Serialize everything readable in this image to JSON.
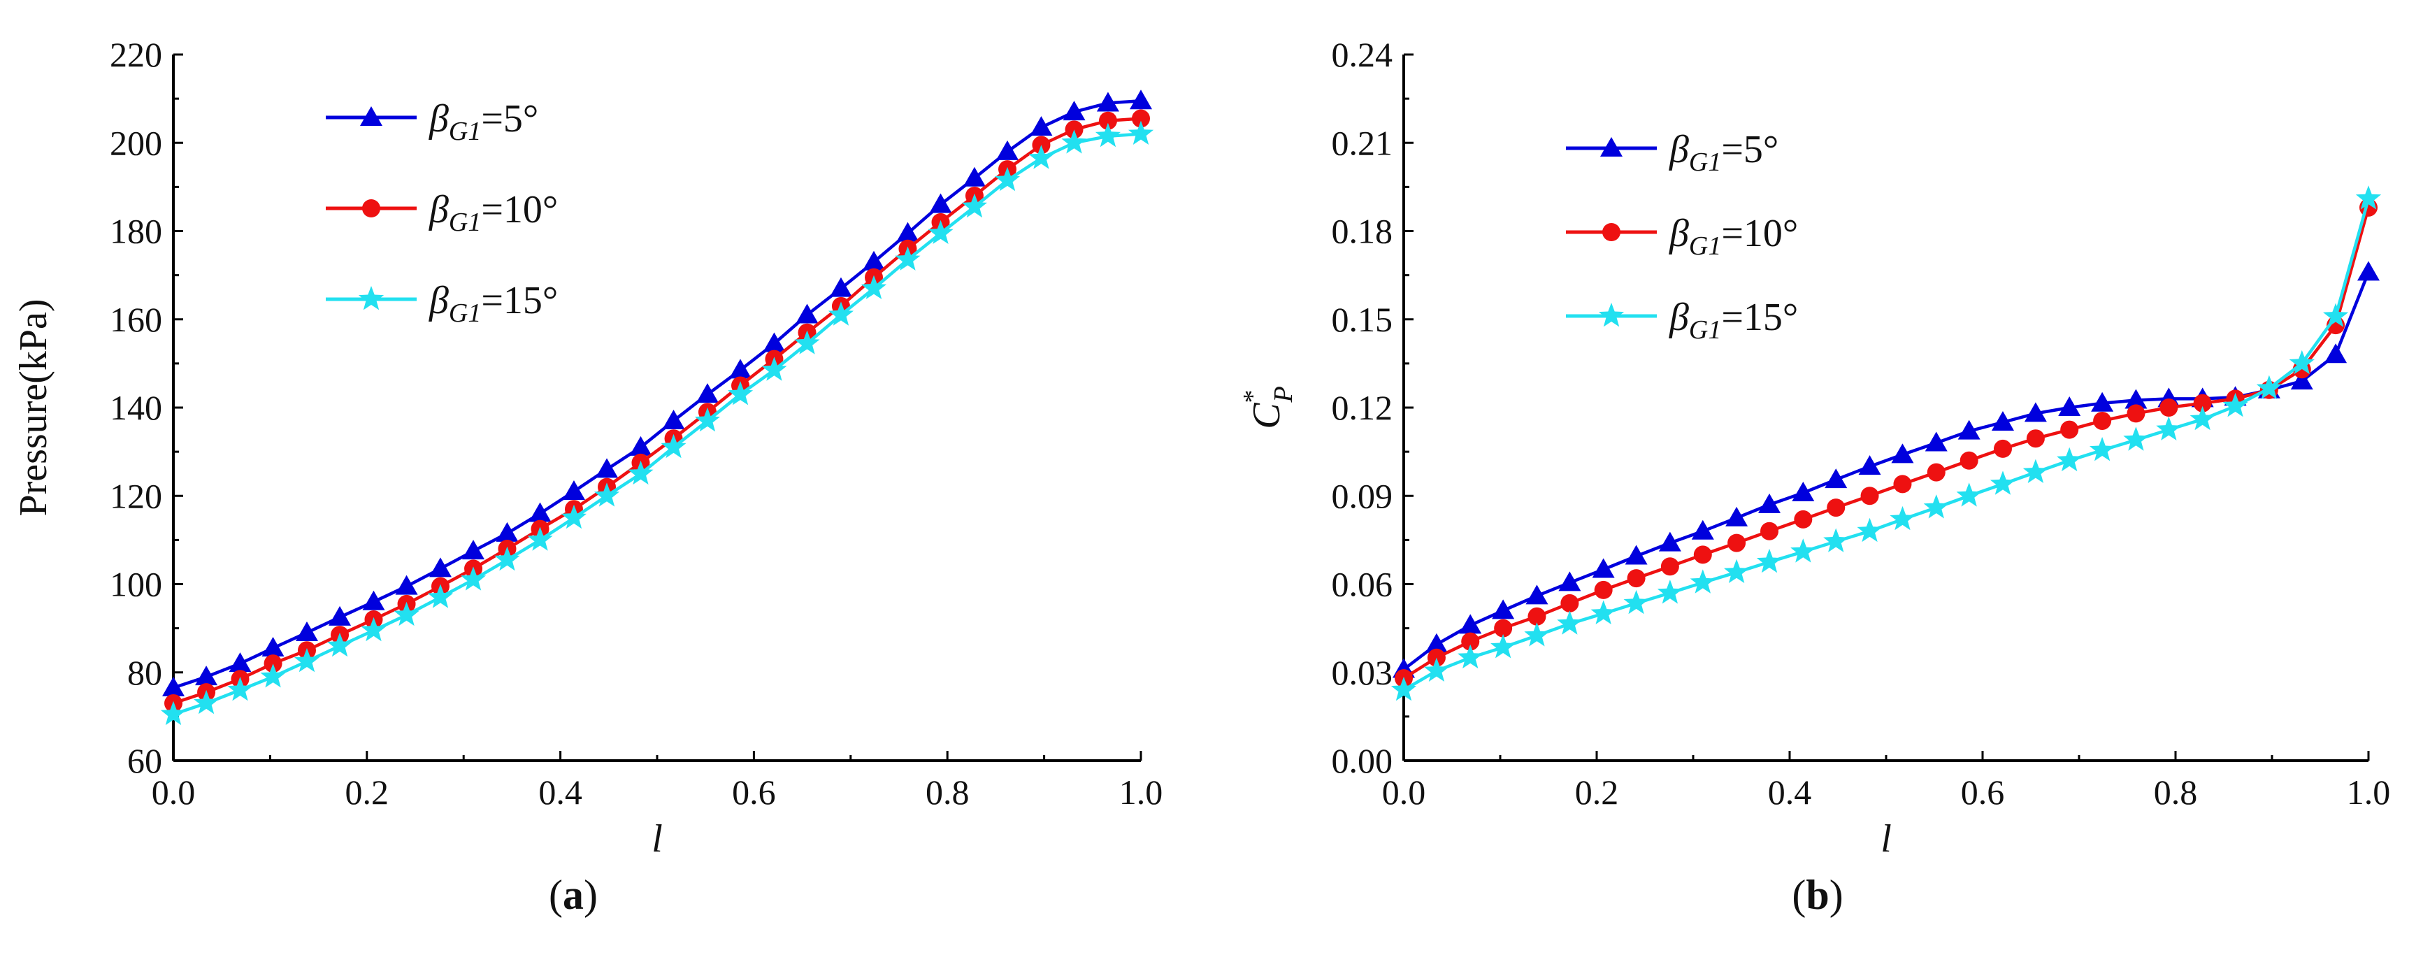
{
  "chart_data": [
    {
      "id": "a",
      "type": "line",
      "panel_label": [
        "(",
        "a",
        ")"
      ],
      "xlabel": "l",
      "ylabel": "Pressure(kPa)",
      "xlim": [
        0.0,
        1.0
      ],
      "ylim": [
        60,
        220
      ],
      "xticks": [
        "0.0",
        "0.2",
        "0.4",
        "0.6",
        "0.8",
        "1.0"
      ],
      "yticks": [
        "60",
        "80",
        "100",
        "120",
        "140",
        "160",
        "180",
        "200",
        "220"
      ],
      "legend_position": "top-left",
      "x": [
        0.0,
        0.034,
        0.069,
        0.103,
        0.138,
        0.172,
        0.207,
        0.241,
        0.276,
        0.31,
        0.345,
        0.379,
        0.414,
        0.448,
        0.483,
        0.517,
        0.552,
        0.586,
        0.621,
        0.655,
        0.69,
        0.724,
        0.759,
        0.793,
        0.828,
        0.862,
        0.897,
        0.931,
        0.966,
        1.0
      ],
      "series": [
        {
          "name": "β",
          "sub": "G1",
          "suffix": "=5°",
          "color": "#0000dd",
          "marker": "triangle",
          "values": [
            76.5,
            79,
            82,
            85.5,
            89,
            92.5,
            96,
            99.5,
            103.5,
            107.5,
            111.5,
            116,
            121,
            126,
            131,
            137,
            143,
            148.5,
            154.5,
            161,
            167,
            173,
            179.5,
            186,
            192,
            198,
            203.5,
            207,
            209,
            209.5
          ]
        },
        {
          "name": "β",
          "sub": "G1",
          "suffix": "=10°",
          "color": "#ee1111",
          "marker": "circle",
          "values": [
            73,
            75.5,
            78.5,
            82,
            85,
            88.5,
            92,
            95.5,
            99.5,
            103.5,
            108,
            112.5,
            117,
            122,
            127.5,
            133,
            139,
            145,
            151,
            157,
            163,
            169.5,
            176,
            182,
            188,
            194,
            199.5,
            203,
            205,
            205.5
          ]
        },
        {
          "name": "β",
          "sub": "G1",
          "suffix": "=15°",
          "color": "#22e0f0",
          "marker": "star",
          "values": [
            70.5,
            73,
            76,
            79,
            82.5,
            86,
            89.5,
            93,
            97,
            101,
            105.5,
            110,
            115,
            120,
            125,
            131,
            137,
            143,
            148.5,
            154.5,
            161,
            167,
            173.5,
            179.5,
            185.5,
            191.5,
            196.5,
            200,
            201.5,
            202
          ]
        }
      ]
    },
    {
      "id": "b",
      "type": "line",
      "panel_label": [
        "(",
        "b",
        ")"
      ],
      "xlabel": "l",
      "ylabel": "C",
      "ylabel_sub": "P",
      "ylabel_sup": "*",
      "xlim": [
        0.0,
        1.0
      ],
      "ylim": [
        0.0,
        0.24
      ],
      "xticks": [
        "0.0",
        "0.2",
        "0.4",
        "0.6",
        "0.8",
        "1.0"
      ],
      "yticks": [
        "0.00",
        "0.03",
        "0.06",
        "0.09",
        "0.12",
        "0.15",
        "0.18",
        "0.21",
        "0.24"
      ],
      "legend_position": "top-left",
      "x": [
        0.0,
        0.034,
        0.069,
        0.103,
        0.138,
        0.172,
        0.207,
        0.241,
        0.276,
        0.31,
        0.345,
        0.379,
        0.414,
        0.448,
        0.483,
        0.517,
        0.552,
        0.586,
        0.621,
        0.655,
        0.69,
        0.724,
        0.759,
        0.793,
        0.828,
        0.862,
        0.897,
        0.931,
        0.966,
        1.0
      ],
      "series": [
        {
          "name": "β",
          "sub": "G1",
          "suffix": "=5°",
          "color": "#0000dd",
          "marker": "triangle",
          "values": [
            0.031,
            0.0395,
            0.046,
            0.051,
            0.056,
            0.0605,
            0.065,
            0.0695,
            0.074,
            0.078,
            0.0825,
            0.087,
            0.091,
            0.0955,
            0.1,
            0.104,
            0.108,
            0.112,
            0.115,
            0.118,
            0.12,
            0.1215,
            0.1225,
            0.123,
            0.123,
            0.1235,
            0.126,
            0.129,
            0.138,
            0.166
          ]
        },
        {
          "name": "β",
          "sub": "G1",
          "suffix": "=10°",
          "color": "#ee1111",
          "marker": "circle",
          "values": [
            0.028,
            0.035,
            0.0405,
            0.045,
            0.049,
            0.0535,
            0.058,
            0.062,
            0.066,
            0.07,
            0.074,
            0.078,
            0.082,
            0.086,
            0.09,
            0.094,
            0.098,
            0.102,
            0.106,
            0.1095,
            0.1125,
            0.1155,
            0.118,
            0.12,
            0.1215,
            0.123,
            0.126,
            0.133,
            0.148,
            0.188
          ]
        },
        {
          "name": "β",
          "sub": "G1",
          "suffix": "=15°",
          "color": "#22e0f0",
          "marker": "star",
          "values": [
            0.024,
            0.0305,
            0.035,
            0.0385,
            0.0425,
            0.0465,
            0.05,
            0.0535,
            0.057,
            0.0605,
            0.064,
            0.0675,
            0.071,
            0.0745,
            0.078,
            0.082,
            0.086,
            0.09,
            0.094,
            0.098,
            0.102,
            0.1055,
            0.109,
            0.1125,
            0.116,
            0.1205,
            0.1265,
            0.135,
            0.151,
            0.191
          ]
        }
      ]
    }
  ]
}
